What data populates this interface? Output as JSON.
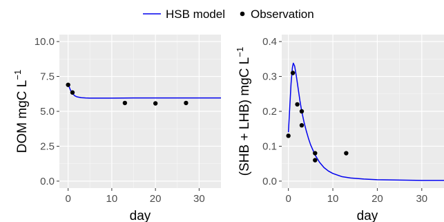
{
  "legend": {
    "items": [
      {
        "label": "HSB model",
        "kind": "line",
        "color": "#0000ee"
      },
      {
        "label": "Observation",
        "kind": "point",
        "color": "#000000"
      }
    ],
    "placement": "top-center"
  },
  "chart_data": [
    {
      "type": "line",
      "panel": "left",
      "xlabel": "day",
      "ylabel": "DOM mgC L",
      "ylabel_superscript": "−1",
      "xlim": [
        -2,
        35
      ],
      "ylim": [
        -0.5,
        10.5
      ],
      "xticks": [
        0,
        10,
        20,
        30
      ],
      "yticks": [
        0.0,
        2.5,
        5.0,
        7.5,
        10.0
      ],
      "xtick_labels": [
        "0",
        "10",
        "20",
        "30"
      ],
      "ytick_labels": [
        "0.0",
        "2.5",
        "5.0",
        "7.5",
        "10.0"
      ],
      "grid": true,
      "background": "#ebebeb",
      "series": [
        {
          "name": "HSB model",
          "kind": "line",
          "color": "#0000ee",
          "x": [
            0,
            0.25,
            0.5,
            0.75,
            1,
            1.5,
            2,
            3,
            4,
            5,
            7,
            10,
            15,
            20,
            25,
            30,
            35
          ],
          "y": [
            6.95,
            6.75,
            6.55,
            6.4,
            6.28,
            6.12,
            6.04,
            5.98,
            5.96,
            5.95,
            5.95,
            5.95,
            5.96,
            5.96,
            5.96,
            5.96,
            5.96
          ]
        },
        {
          "name": "Observation",
          "kind": "point",
          "color": "#000000",
          "x": [
            0,
            1,
            13,
            20,
            27
          ],
          "y": [
            6.9,
            6.35,
            5.6,
            5.57,
            5.6
          ]
        }
      ]
    },
    {
      "type": "line",
      "panel": "right",
      "xlabel": "day",
      "ylabel": "(SHB + LHB) mgC L",
      "ylabel_superscript": "−1",
      "xlim": [
        -1.5,
        35
      ],
      "ylim": [
        -0.02,
        0.42
      ],
      "xticks": [
        0,
        10,
        20,
        30
      ],
      "yticks": [
        0.0,
        0.1,
        0.2,
        0.3,
        0.4
      ],
      "xtick_labels": [
        "0",
        "10",
        "20",
        "30"
      ],
      "ytick_labels": [
        "0.0",
        "0.1",
        "0.2",
        "0.3",
        "0.4"
      ],
      "grid": true,
      "background": "#ebebeb",
      "series": [
        {
          "name": "HSB model",
          "kind": "line",
          "color": "#0000ee",
          "x": [
            0,
            0.3,
            0.6,
            0.9,
            1.1,
            1.4,
            1.8,
            2.2,
            2.6,
            3,
            3.5,
            4,
            4.5,
            5,
            6,
            7,
            8,
            9,
            10,
            12,
            14,
            17,
            20,
            25,
            30,
            35
          ],
          "y": [
            0.14,
            0.21,
            0.28,
            0.325,
            0.338,
            0.33,
            0.3,
            0.265,
            0.23,
            0.2,
            0.17,
            0.145,
            0.123,
            0.104,
            0.075,
            0.054,
            0.039,
            0.029,
            0.022,
            0.013,
            0.009,
            0.006,
            0.004,
            0.003,
            0.002,
            0.002
          ]
        },
        {
          "name": "Observation",
          "kind": "point",
          "color": "#000000",
          "x": [
            0,
            1,
            2,
            3,
            3,
            6,
            6,
            13
          ],
          "y": [
            0.13,
            0.31,
            0.22,
            0.2,
            0.16,
            0.08,
            0.06,
            0.08
          ]
        }
      ]
    }
  ]
}
